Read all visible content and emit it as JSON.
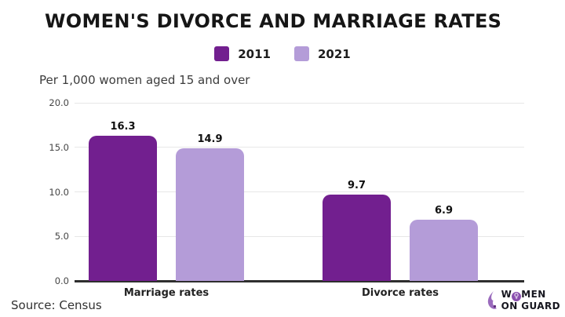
{
  "title": "WOMEN'S DIVORCE AND MARRIAGE RATES",
  "subtitle": "Per 1,000 women aged 15 and over",
  "source": "Source: Census",
  "logo": {
    "word1_pre": "W",
    "word1_symbol": "♀",
    "word1_post": "MEN",
    "word2": "ON GUARD",
    "icon": "woman-flame-icon",
    "icon_color": "#9a6bbd"
  },
  "colors": {
    "series_2011": "#721f8f",
    "series_2021": "#b49cd8",
    "gridline": "#e7e7e7",
    "axis_line": "#2e2e2e",
    "background": "#ffffff",
    "title_text": "#161616"
  },
  "chart_data": {
    "type": "bar",
    "categories": [
      "Marriage rates",
      "Divorce rates"
    ],
    "series": [
      {
        "name": "2011",
        "color": "#721f8f",
        "values": [
          16.3,
          9.7
        ]
      },
      {
        "name": "2021",
        "color": "#b49cd8",
        "values": [
          14.9,
          6.9
        ]
      }
    ],
    "title": "WOMEN'S DIVORCE AND MARRIAGE RATES",
    "subtitle": "Per 1,000 women aged 15 and over",
    "xlabel": "",
    "ylabel": "Per 1,000 women aged 15 and over",
    "ylim": [
      0,
      20
    ],
    "yticks": [
      0,
      5,
      10,
      15,
      20
    ],
    "ytick_labels": [
      "0.0",
      "5.0",
      "10.0",
      "15.0",
      "20.0"
    ],
    "grid": true,
    "legend_position": "top-center",
    "value_labels": [
      "16.3",
      "14.9",
      "9.7",
      "6.9"
    ]
  }
}
